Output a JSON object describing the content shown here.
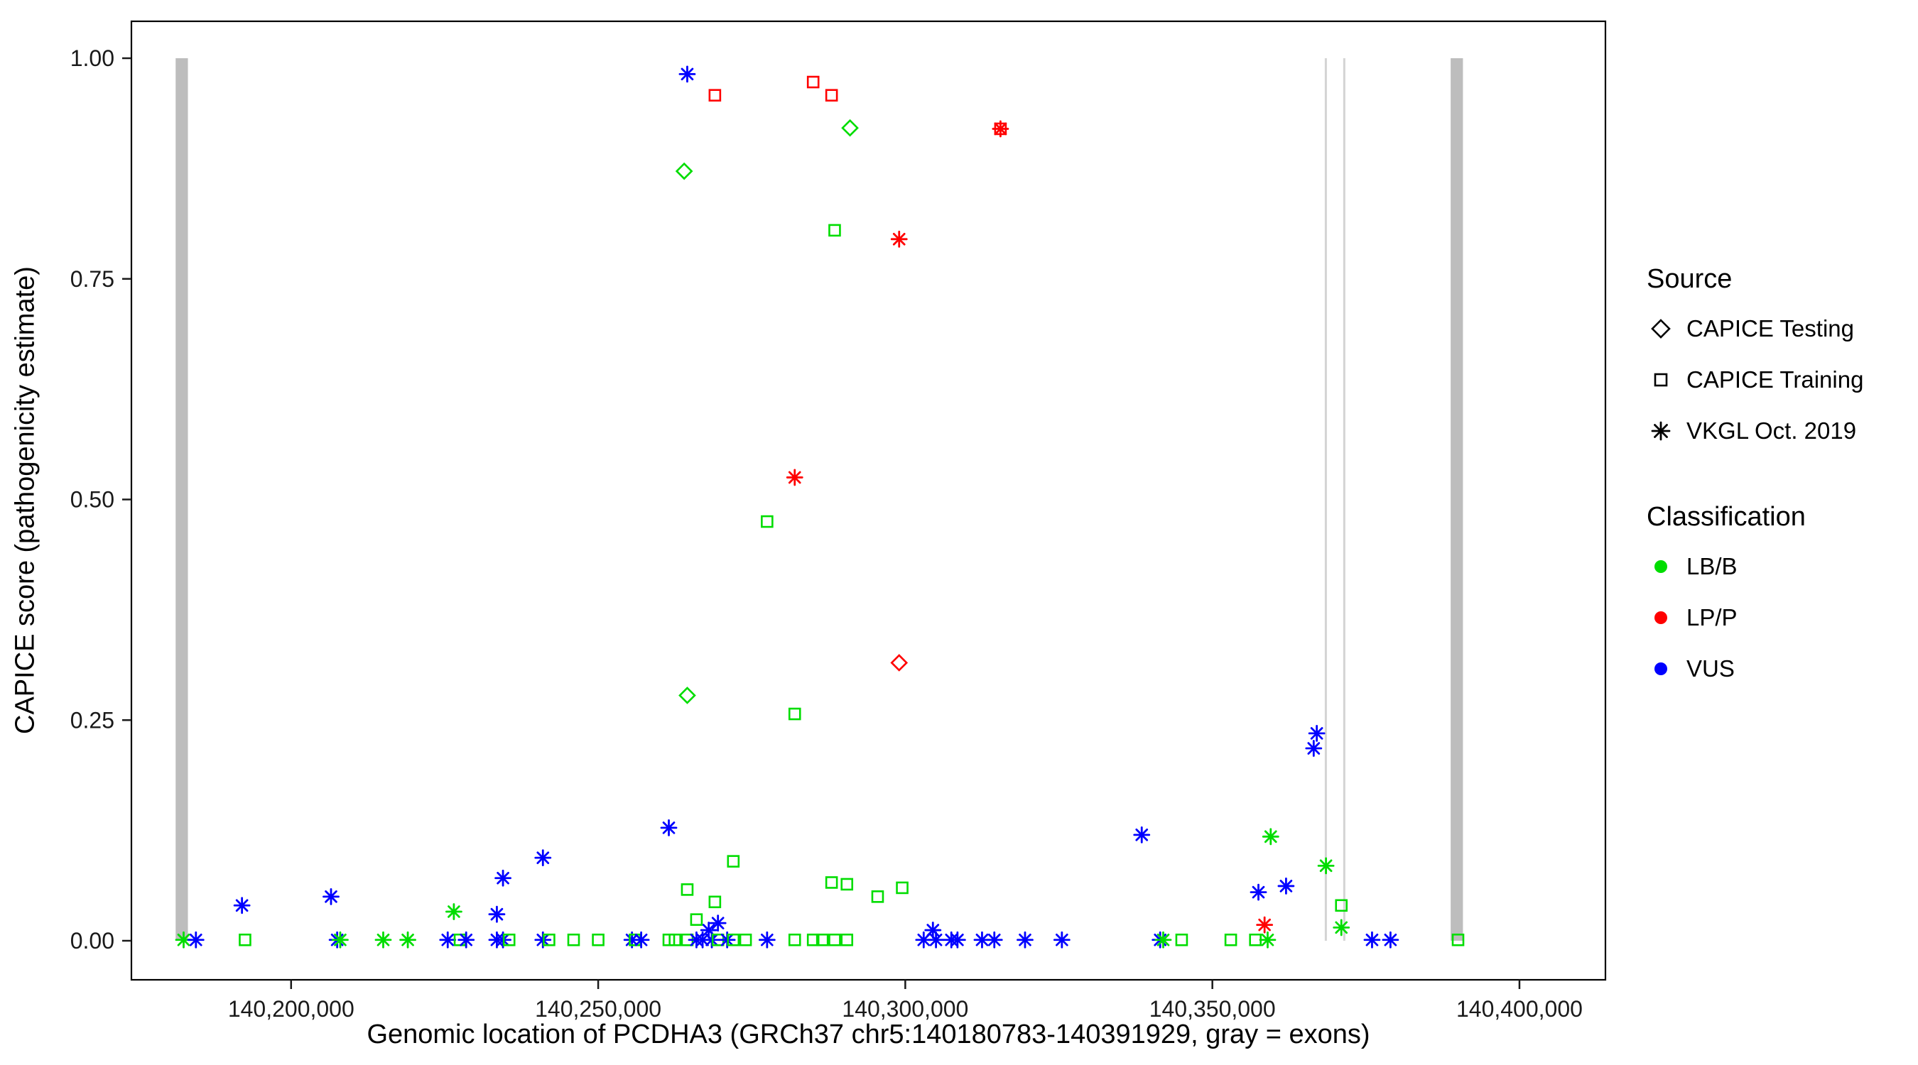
{
  "legend": {
    "source": {
      "title": "Source",
      "items": [
        {
          "key": "testing",
          "label": "CAPICE Testing",
          "shape": "diamond"
        },
        {
          "key": "training",
          "label": "CAPICE Training",
          "shape": "square"
        },
        {
          "key": "vkgl",
          "label": "VKGL Oct. 2019",
          "shape": "asterisk"
        }
      ]
    },
    "classification": {
      "title": "Classification",
      "items": [
        {
          "key": "LB/B",
          "label": "LB/B"
        },
        {
          "key": "LP/P",
          "label": "LP/P"
        },
        {
          "key": "VUS",
          "label": "VUS"
        }
      ]
    }
  },
  "chart_data": {
    "type": "scatter",
    "title": "",
    "xlabel": "Genomic location of PCDHA3 (GRCh37 chr5:140180783-140391929, gray = exons)",
    "ylabel": "CAPICE score (pathogenicity estimate)",
    "x_domain": [
      140174000,
      140414000
    ],
    "y_domain": [
      0,
      1
    ],
    "grid": false,
    "legend_position": "right",
    "x_ticks": [
      {
        "value": 140200000,
        "label": "140,200,000"
      },
      {
        "value": 140250000,
        "label": "140,250,000"
      },
      {
        "value": 140300000,
        "label": "140,300,000"
      },
      {
        "value": 140350000,
        "label": "140,350,000"
      },
      {
        "value": 140400000,
        "label": "140,400,000"
      }
    ],
    "y_ticks": [
      {
        "value": 0,
        "label": "0.00"
      },
      {
        "value": 0.25,
        "label": "0.25"
      },
      {
        "value": 0.5,
        "label": "0.50"
      },
      {
        "value": 0.75,
        "label": "0.75"
      },
      {
        "value": 1,
        "label": "1.00"
      }
    ],
    "exon_color": "#bdbdbd",
    "exon_thin_color": "#d4d4d4",
    "exons": [
      {
        "start": 140181200,
        "end": 140183200,
        "thin": false
      },
      {
        "start": 140368300,
        "end": 140368650,
        "thin": true
      },
      {
        "start": 140371300,
        "end": 140371650,
        "thin": true
      },
      {
        "start": 140388800,
        "end": 140390800,
        "thin": false
      }
    ],
    "classification_colors": {
      "LB/B": "#00DD00",
      "LP/P": "#FF0000",
      "VUS": "#0000FF"
    },
    "source_shapes": {
      "testing": "diamond",
      "training": "square",
      "vkgl": "asterisk"
    },
    "points": [
      {
        "x": 140264500,
        "y": 0.982,
        "source": "vkgl",
        "class": "VUS"
      },
      {
        "x": 140269000,
        "y": 0.958,
        "source": "training",
        "class": "LP/P"
      },
      {
        "x": 140285000,
        "y": 0.973,
        "source": "training",
        "class": "LP/P"
      },
      {
        "x": 140288000,
        "y": 0.958,
        "source": "training",
        "class": "LP/P"
      },
      {
        "x": 140291000,
        "y": 0.921,
        "source": "testing",
        "class": "LB/B"
      },
      {
        "x": 140315500,
        "y": 0.92,
        "source": "training",
        "class": "LP/P"
      },
      {
        "x": 140315500,
        "y": 0.92,
        "source": "vkgl",
        "class": "LP/P"
      },
      {
        "x": 140264000,
        "y": 0.872,
        "source": "testing",
        "class": "LB/B"
      },
      {
        "x": 140288500,
        "y": 0.805,
        "source": "training",
        "class": "LB/B"
      },
      {
        "x": 140299000,
        "y": 0.795,
        "source": "vkgl",
        "class": "LP/P"
      },
      {
        "x": 140282000,
        "y": 0.525,
        "source": "vkgl",
        "class": "LP/P"
      },
      {
        "x": 140277500,
        "y": 0.475,
        "source": "training",
        "class": "LB/B"
      },
      {
        "x": 140299000,
        "y": 0.315,
        "source": "testing",
        "class": "LP/P"
      },
      {
        "x": 140264500,
        "y": 0.278,
        "source": "testing",
        "class": "LB/B"
      },
      {
        "x": 140282000,
        "y": 0.257,
        "source": "training",
        "class": "LB/B"
      },
      {
        "x": 140367000,
        "y": 0.235,
        "source": "vkgl",
        "class": "VUS"
      },
      {
        "x": 140366500,
        "y": 0.218,
        "source": "vkgl",
        "class": "VUS"
      },
      {
        "x": 140261500,
        "y": 0.128,
        "source": "vkgl",
        "class": "VUS"
      },
      {
        "x": 140338500,
        "y": 0.12,
        "source": "vkgl",
        "class": "VUS"
      },
      {
        "x": 140359500,
        "y": 0.118,
        "source": "vkgl",
        "class": "LB/B"
      },
      {
        "x": 140241000,
        "y": 0.094,
        "source": "vkgl",
        "class": "VUS"
      },
      {
        "x": 140272000,
        "y": 0.09,
        "source": "training",
        "class": "LB/B"
      },
      {
        "x": 140368500,
        "y": 0.085,
        "source": "vkgl",
        "class": "LB/B"
      },
      {
        "x": 140234500,
        "y": 0.071,
        "source": "vkgl",
        "class": "VUS"
      },
      {
        "x": 140288000,
        "y": 0.066,
        "source": "training",
        "class": "LB/B"
      },
      {
        "x": 140290500,
        "y": 0.064,
        "source": "training",
        "class": "LB/B"
      },
      {
        "x": 140264500,
        "y": 0.058,
        "source": "training",
        "class": "LB/B"
      },
      {
        "x": 140299500,
        "y": 0.06,
        "source": "training",
        "class": "LB/B"
      },
      {
        "x": 140362000,
        "y": 0.062,
        "source": "vkgl",
        "class": "VUS"
      },
      {
        "x": 140357500,
        "y": 0.055,
        "source": "vkgl",
        "class": "VUS"
      },
      {
        "x": 140295500,
        "y": 0.05,
        "source": "training",
        "class": "LB/B"
      },
      {
        "x": 140206500,
        "y": 0.05,
        "source": "vkgl",
        "class": "VUS"
      },
      {
        "x": 140192000,
        "y": 0.04,
        "source": "vkgl",
        "class": "VUS"
      },
      {
        "x": 140269000,
        "y": 0.044,
        "source": "training",
        "class": "LB/B"
      },
      {
        "x": 140371000,
        "y": 0.04,
        "source": "training",
        "class": "LB/B"
      },
      {
        "x": 140226500,
        "y": 0.033,
        "source": "vkgl",
        "class": "LB/B"
      },
      {
        "x": 140233500,
        "y": 0.03,
        "source": "vkgl",
        "class": "VUS"
      },
      {
        "x": 140266000,
        "y": 0.024,
        "source": "training",
        "class": "LB/B"
      },
      {
        "x": 140269500,
        "y": 0.02,
        "source": "vkgl",
        "class": "VUS"
      },
      {
        "x": 140358500,
        "y": 0.018,
        "source": "vkgl",
        "class": "LP/P"
      },
      {
        "x": 140371000,
        "y": 0.015,
        "source": "vkgl",
        "class": "LB/B"
      },
      {
        "x": 140304500,
        "y": 0.012,
        "source": "vkgl",
        "class": "VUS"
      },
      {
        "x": 140268000,
        "y": 0.012,
        "source": "vkgl",
        "class": "VUS"
      },
      {
        "x": 140182500,
        "y": 0.001,
        "source": "vkgl",
        "class": "LB/B"
      },
      {
        "x": 140184500,
        "y": 0.001,
        "source": "vkgl",
        "class": "VUS"
      },
      {
        "x": 140192500,
        "y": 0.001,
        "source": "training",
        "class": "LB/B"
      },
      {
        "x": 140207500,
        "y": 0.001,
        "source": "vkgl",
        "class": "VUS"
      },
      {
        "x": 140208000,
        "y": 0.001,
        "source": "vkgl",
        "class": "LB/B"
      },
      {
        "x": 140215000,
        "y": 0.001,
        "source": "vkgl",
        "class": "LB/B"
      },
      {
        "x": 140219000,
        "y": 0.001,
        "source": "vkgl",
        "class": "LB/B"
      },
      {
        "x": 140225500,
        "y": 0.001,
        "source": "vkgl",
        "class": "VUS"
      },
      {
        "x": 140227500,
        "y": 0.001,
        "source": "training",
        "class": "LB/B"
      },
      {
        "x": 140228500,
        "y": 0.001,
        "source": "vkgl",
        "class": "VUS"
      },
      {
        "x": 140233500,
        "y": 0.001,
        "source": "vkgl",
        "class": "VUS"
      },
      {
        "x": 140234500,
        "y": 0.001,
        "source": "vkgl",
        "class": "VUS"
      },
      {
        "x": 140235500,
        "y": 0.001,
        "source": "training",
        "class": "LB/B"
      },
      {
        "x": 140241000,
        "y": 0.001,
        "source": "vkgl",
        "class": "VUS"
      },
      {
        "x": 140242000,
        "y": 0.001,
        "source": "training",
        "class": "LB/B"
      },
      {
        "x": 140246000,
        "y": 0.001,
        "source": "training",
        "class": "LB/B"
      },
      {
        "x": 140250000,
        "y": 0.001,
        "source": "training",
        "class": "LB/B"
      },
      {
        "x": 140255500,
        "y": 0.001,
        "source": "vkgl",
        "class": "VUS"
      },
      {
        "x": 140256000,
        "y": 0.001,
        "source": "training",
        "class": "LB/B"
      },
      {
        "x": 140257000,
        "y": 0.001,
        "source": "vkgl",
        "class": "VUS"
      },
      {
        "x": 140261500,
        "y": 0.001,
        "source": "training",
        "class": "LB/B"
      },
      {
        "x": 140262500,
        "y": 0.001,
        "source": "training",
        "class": "LB/B"
      },
      {
        "x": 140264500,
        "y": 0.001,
        "source": "training",
        "class": "LB/B"
      },
      {
        "x": 140266000,
        "y": 0.001,
        "source": "vkgl",
        "class": "VUS"
      },
      {
        "x": 140267000,
        "y": 0.001,
        "source": "vkgl",
        "class": "VUS"
      },
      {
        "x": 140268500,
        "y": 0.001,
        "source": "vkgl",
        "class": "VUS"
      },
      {
        "x": 140269500,
        "y": 0.001,
        "source": "training",
        "class": "LB/B"
      },
      {
        "x": 140271000,
        "y": 0.001,
        "source": "vkgl",
        "class": "VUS"
      },
      {
        "x": 140272000,
        "y": 0.001,
        "source": "training",
        "class": "LB/B"
      },
      {
        "x": 140274000,
        "y": 0.001,
        "source": "training",
        "class": "LB/B"
      },
      {
        "x": 140277500,
        "y": 0.001,
        "source": "vkgl",
        "class": "VUS"
      },
      {
        "x": 140282000,
        "y": 0.001,
        "source": "training",
        "class": "LB/B"
      },
      {
        "x": 140285000,
        "y": 0.001,
        "source": "training",
        "class": "LB/B"
      },
      {
        "x": 140286500,
        "y": 0.001,
        "source": "training",
        "class": "LB/B"
      },
      {
        "x": 140288500,
        "y": 0.001,
        "source": "training",
        "class": "LB/B"
      },
      {
        "x": 140290500,
        "y": 0.001,
        "source": "training",
        "class": "LB/B"
      },
      {
        "x": 140303000,
        "y": 0.001,
        "source": "vkgl",
        "class": "VUS"
      },
      {
        "x": 140305000,
        "y": 0.001,
        "source": "vkgl",
        "class": "VUS"
      },
      {
        "x": 140307500,
        "y": 0.001,
        "source": "vkgl",
        "class": "VUS"
      },
      {
        "x": 140308500,
        "y": 0.001,
        "source": "vkgl",
        "class": "VUS"
      },
      {
        "x": 140312500,
        "y": 0.001,
        "source": "vkgl",
        "class": "VUS"
      },
      {
        "x": 140314500,
        "y": 0.001,
        "source": "vkgl",
        "class": "VUS"
      },
      {
        "x": 140319500,
        "y": 0.001,
        "source": "vkgl",
        "class": "VUS"
      },
      {
        "x": 140325500,
        "y": 0.001,
        "source": "vkgl",
        "class": "VUS"
      },
      {
        "x": 140341500,
        "y": 0.001,
        "source": "vkgl",
        "class": "VUS"
      },
      {
        "x": 140342000,
        "y": 0.001,
        "source": "vkgl",
        "class": "LB/B"
      },
      {
        "x": 140345000,
        "y": 0.001,
        "source": "training",
        "class": "LB/B"
      },
      {
        "x": 140353000,
        "y": 0.001,
        "source": "training",
        "class": "LB/B"
      },
      {
        "x": 140357000,
        "y": 0.001,
        "source": "training",
        "class": "LB/B"
      },
      {
        "x": 140359000,
        "y": 0.001,
        "source": "vkgl",
        "class": "LB/B"
      },
      {
        "x": 140376000,
        "y": 0.001,
        "source": "vkgl",
        "class": "VUS"
      },
      {
        "x": 140379000,
        "y": 0.001,
        "source": "vkgl",
        "class": "VUS"
      },
      {
        "x": 140390000,
        "y": 0.001,
        "source": "training",
        "class": "LB/B"
      }
    ]
  }
}
